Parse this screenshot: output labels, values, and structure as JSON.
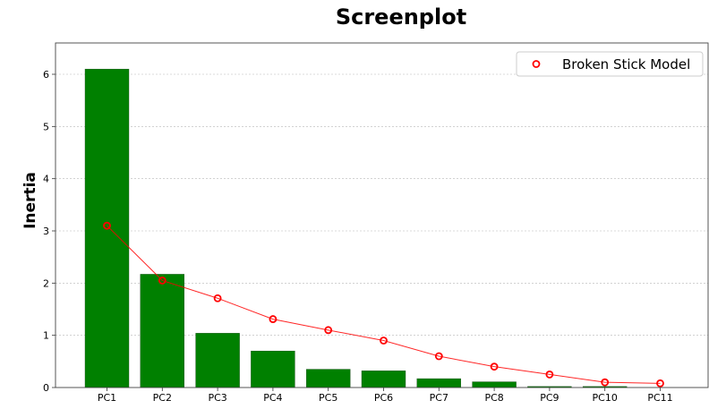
{
  "chart_data": {
    "type": "bar",
    "title": "Screenplot",
    "xlabel": "",
    "ylabel": "Inertia",
    "categories": [
      "PC1",
      "PC2",
      "PC3",
      "PC4",
      "PC5",
      "PC6",
      "PC7",
      "PC8",
      "PC9",
      "PC10",
      "PC11"
    ],
    "series": [
      {
        "values": [
          6.1,
          2.17,
          1.04,
          0.7,
          0.35,
          0.32,
          0.17,
          0.11,
          0.02,
          0.02,
          0.0
        ],
        "color": "#008000"
      },
      {
        "name": "Broken Stick Model",
        "type": "line",
        "marker": "open-circle",
        "values": [
          3.1,
          2.05,
          1.71,
          1.31,
          1.1,
          0.9,
          0.6,
          0.4,
          0.25,
          0.1,
          0.08
        ],
        "color": "#ff0000"
      }
    ],
    "ylim": [
      0,
      6.6
    ],
    "yticks": [
      0,
      1,
      2,
      3,
      4,
      5,
      6
    ],
    "grid": "horizontal dotted",
    "legend": "top-right"
  }
}
